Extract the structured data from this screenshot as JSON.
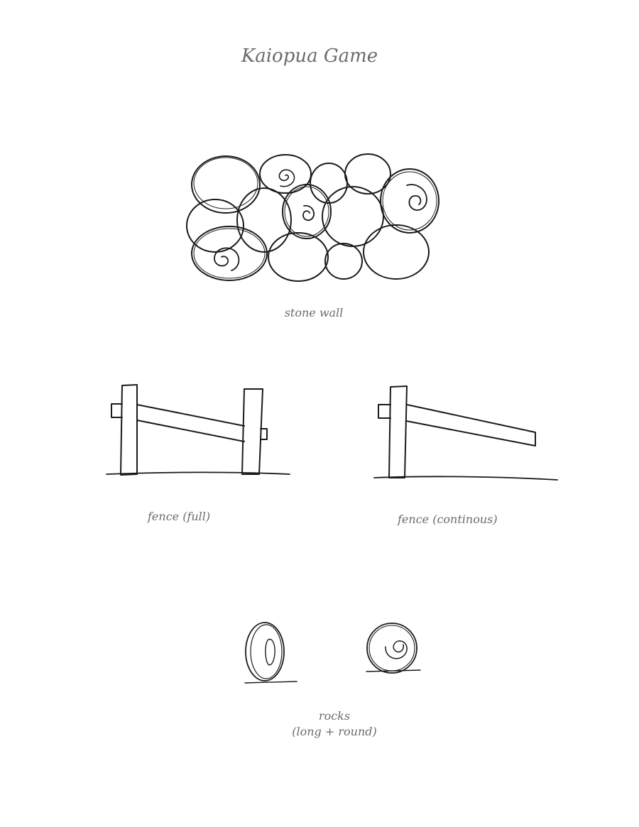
{
  "title": "Kaiopua Game",
  "items": {
    "stone_wall": {
      "caption": "stone wall"
    },
    "fence_full": {
      "caption": "fence (full)"
    },
    "fence_continuous": {
      "caption": "fence (continous)"
    },
    "rocks": {
      "caption_line1": "rocks",
      "caption_line2": "(long + round)"
    }
  },
  "colors": {
    "ink": "#1a1a1a",
    "caption_text": "#6b6b6b",
    "paper": "#ffffff"
  }
}
